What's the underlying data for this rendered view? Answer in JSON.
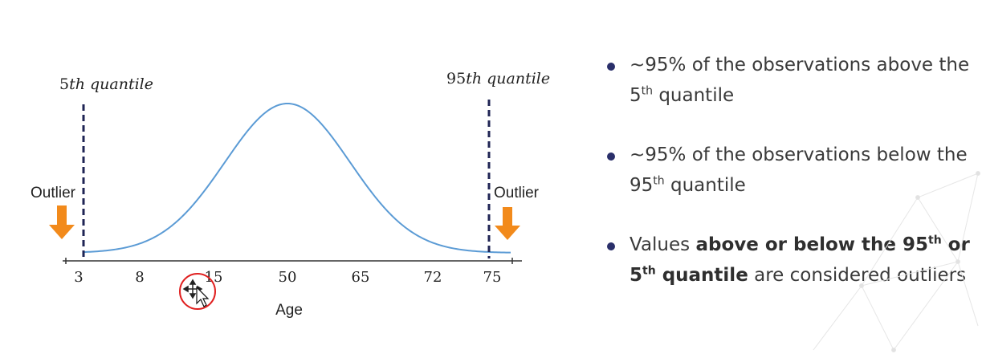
{
  "labels": {
    "q5_prefix": "5",
    "q5_suffix": "th quantile",
    "q95_prefix": "95",
    "q95_suffix": "th quantile",
    "outlier_left": "Outlier",
    "outlier_right": "Outlier",
    "axis_label": "Age"
  },
  "ticks": [
    "3",
    "8",
    "15",
    "50",
    "65",
    "72",
    "75"
  ],
  "bullets": {
    "b1_a": "~95% of the observations above the 5",
    "b1_sup": "th",
    "b1_b": " quantile",
    "b2_a": "~95% of the observations below the 95",
    "b2_sup": "th",
    "b2_b": " quantile",
    "b3_a": "Values ",
    "b3_bold1": "above or below the 95",
    "b3_sup1": "th",
    "b3_bold2": " or 5",
    "b3_sup2": "th",
    "b3_bold3": " quantile",
    "b3_c": " are considered outliers"
  },
  "colors": {
    "curve": "#5b9bd5",
    "dashed_line": "#1f2454",
    "arrow": "#f28a1b",
    "bullet_dot": "#2a2f6a"
  },
  "icons": [
    "arrow-down-icon",
    "move-cursor-icon"
  ]
}
